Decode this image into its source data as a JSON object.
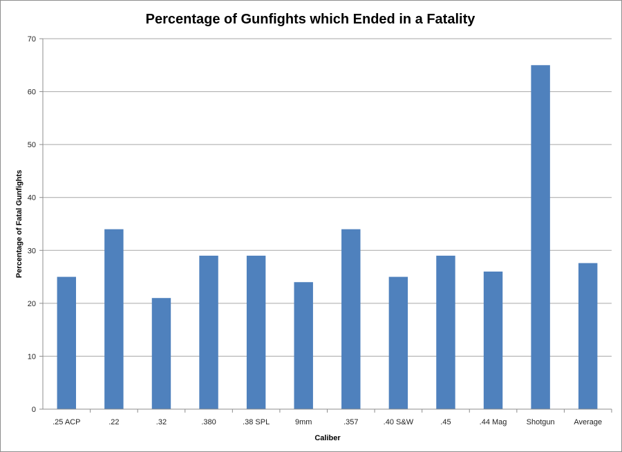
{
  "chart_data": {
    "type": "bar",
    "title": "Percentage of Gunfights which Ended in a Fatality",
    "xlabel": "Caliber",
    "ylabel": "Percentage of Fatal Gunfights",
    "categories": [
      ".25 ACP",
      ".22",
      ".32",
      ".380",
      ".38 SPL",
      "9mm",
      ".357",
      ".40 S&W",
      ".45",
      ".44 Mag",
      "Shotgun",
      "Average"
    ],
    "values": [
      25,
      34,
      21,
      29,
      29,
      24,
      34,
      25,
      29,
      26,
      65,
      27.6
    ],
    "ylim": [
      0,
      70
    ],
    "yticks": [
      0,
      10,
      20,
      30,
      40,
      50,
      60,
      70
    ],
    "grid": true,
    "legend": "none",
    "colors": {
      "bar": "#4f81bd",
      "grid": "#a6a6a6",
      "axis": "#8c8c8c"
    }
  }
}
